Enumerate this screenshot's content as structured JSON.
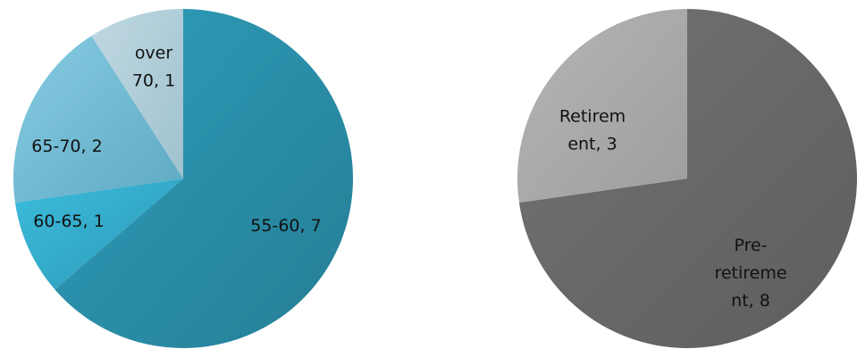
{
  "chart_data": [
    {
      "type": "pie",
      "title": "",
      "categories": [
        "55-60",
        "60-65",
        "65-70",
        "over 70"
      ],
      "values": [
        7,
        1,
        2,
        1
      ],
      "labels": [
        [
          "55-60, 7"
        ],
        [
          "60-65, 1"
        ],
        [
          "65-70, 2"
        ],
        [
          "over",
          "70, 1"
        ]
      ],
      "colors": [
        "#2E94AF",
        "#36B2D3",
        "#7EC3DB",
        "#B4D0DC"
      ],
      "start_angle_deg": 0,
      "direction": "clockwise"
    },
    {
      "type": "pie",
      "title": "",
      "categories": [
        "Pre-retirement",
        "Retirement"
      ],
      "values": [
        8,
        3
      ],
      "labels": [
        [
          "Pre-",
          "retireme",
          "nt, 8"
        ],
        [
          "Retirem",
          "ent, 3"
        ]
      ],
      "colors": [
        "#6B6B6B",
        "#AAAAAA"
      ],
      "start_angle_deg": 0,
      "direction": "clockwise"
    }
  ]
}
